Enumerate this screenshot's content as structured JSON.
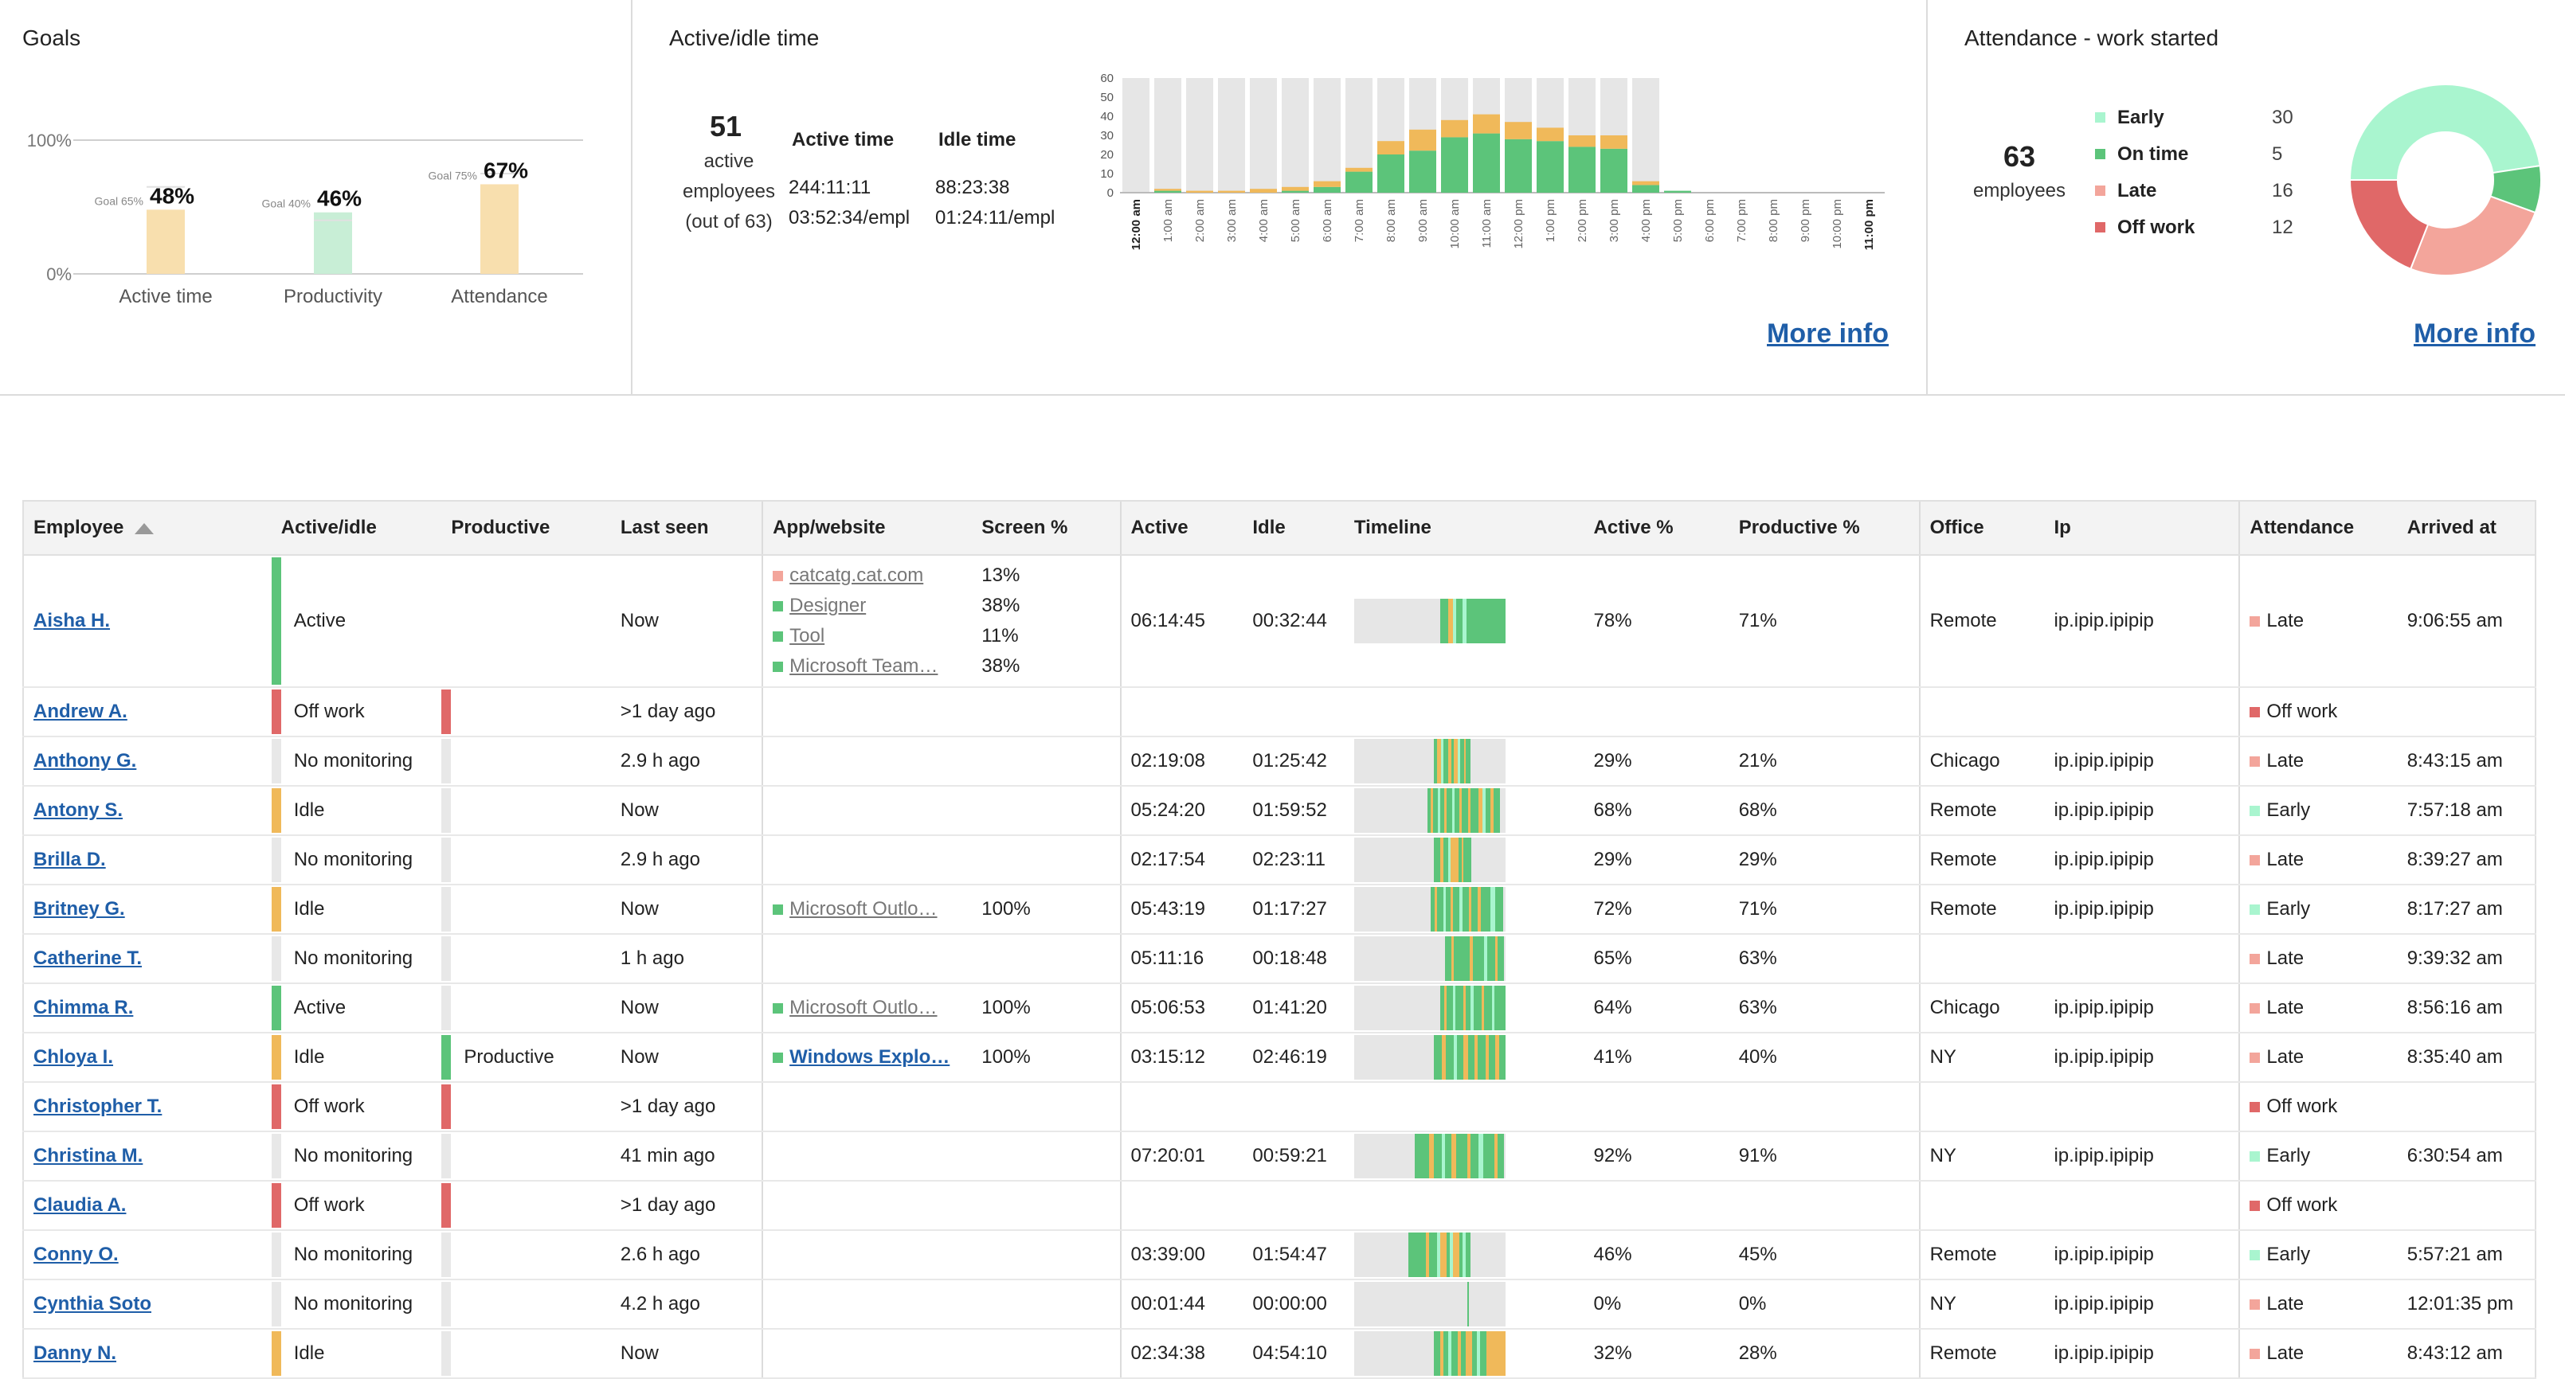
{
  "goals": {
    "title": "Goals",
    "axis": {
      "top": "100%",
      "bottom": "0%"
    },
    "bars": [
      {
        "label": "Active time",
        "value_label": "48%",
        "value": 48,
        "goal_label": "Goal 65%",
        "goal": 65,
        "color": "#f8dfae"
      },
      {
        "label": "Productivity",
        "value_label": "46%",
        "value": 46,
        "goal_label": "Goal 40%",
        "goal": 40,
        "color": "#c8eed6"
      },
      {
        "label": "Attendance",
        "value_label": "67%",
        "value": 67,
        "goal_label": "Goal 75%",
        "goal": 75,
        "color": "#f8dfae"
      }
    ]
  },
  "active_idle": {
    "title": "Active/idle time",
    "count": "51",
    "count_label_lines": [
      "active",
      "employees",
      "(out of 63)"
    ],
    "active_header": "Active time",
    "idle_header": "Idle time",
    "active_total": "244:11:11",
    "active_per": "03:52:34/empl",
    "idle_total": "88:23:38",
    "idle_per": "01:24:11/empl",
    "more_info": "More info"
  },
  "attendance": {
    "title": "Attendance - work started",
    "count": "63",
    "count_label": "employees",
    "legend": [
      {
        "label": "Early",
        "value": "30",
        "color": "#a9f5cf"
      },
      {
        "label": "On time",
        "value": "5",
        "color": "#5cc47a"
      },
      {
        "label": "Late",
        "value": "16",
        "color": "#f3a59b"
      },
      {
        "label": "Off work",
        "value": "12",
        "color": "#e06868"
      }
    ],
    "more_info": "More info"
  },
  "chart_data": {
    "type": "bar",
    "title": "",
    "ylim": [
      0,
      60
    ],
    "yticks": [
      "60",
      "50",
      "40",
      "30",
      "20",
      "10",
      "0"
    ],
    "categories": [
      "12:00 am",
      "1:00 am",
      "2:00 am",
      "3:00 am",
      "4:00 am",
      "5:00 am",
      "6:00 am",
      "7:00 am",
      "8:00 am",
      "9:00 am",
      "10:00 am",
      "11:00 am",
      "12:00 pm",
      "1:00 pm",
      "2:00 pm",
      "3:00 pm",
      "4:00 pm",
      "5:00 pm",
      "6:00 pm",
      "7:00 pm",
      "8:00 pm",
      "9:00 pm",
      "10:00 pm",
      "11:00 pm"
    ],
    "series": [
      {
        "name": "Active",
        "color": "#5cc47a",
        "values": [
          0,
          1,
          0,
          0,
          0,
          1,
          3,
          11,
          20,
          22,
          29,
          31,
          28,
          27,
          24,
          23,
          4,
          1,
          0,
          0,
          0,
          0,
          0,
          0
        ]
      },
      {
        "name": "Idle",
        "color": "#f0b95a",
        "values": [
          0,
          1,
          1,
          1,
          2,
          2,
          3,
          2,
          7,
          11,
          9,
          10,
          9,
          7,
          6,
          7,
          2,
          0,
          0,
          0,
          0,
          0,
          0,
          0
        ]
      }
    ],
    "background_range_end": 17,
    "bold_ticks": [
      "12:00 am",
      "11:00 pm"
    ]
  },
  "table": {
    "headers": {
      "employee": "Employee",
      "active_idle": "Active/idle",
      "productive": "Productive",
      "last_seen": "Last seen",
      "app": "App/website",
      "screen": "Screen %",
      "active": "Active",
      "idle": "Idle",
      "timeline": "Timeline",
      "active_pct": "Active %",
      "productive_pct": "Productive %",
      "office": "Office",
      "ip": "Ip",
      "attendance": "Attendance",
      "arrived": "Arrived at"
    },
    "status_colors": {
      "Active": "#5cc47a",
      "Off work": "#e06868",
      "No monitoring": "#e8e8e8",
      "Idle": "#f0b95a",
      "Productive": "#5cc47a"
    },
    "attendance_colors": {
      "Late": "#f3a59b",
      "Off work": "#e06868",
      "Early": "#a9f5cf"
    },
    "rows": [
      {
        "name": "Aisha H.",
        "status": "Active",
        "productive": "",
        "prod_color": "",
        "last_seen": "Now",
        "apps": [
          {
            "name": "catcatg.cat.com",
            "pct": "13%",
            "color": "#f3a59b"
          },
          {
            "name": "Designer",
            "pct": "38%",
            "color": "#5cc47a"
          },
          {
            "name": "Tool",
            "pct": "11%",
            "color": "#5cc47a"
          },
          {
            "name": "Microsoft Team…",
            "pct": "38%",
            "color": "#5cc47a"
          }
        ],
        "active": "06:14:45",
        "idle": "00:32:44",
        "timeline": "T0",
        "active_pct": "78%",
        "productive_pct": "71%",
        "office": "Remote",
        "ip": "ip.ipip.ipipip",
        "attendance": "Late",
        "arrived": "9:06:55 am"
      },
      {
        "name": "Andrew A.",
        "status": "Off work",
        "productive": "",
        "prod_color": "#e06868",
        "last_seen": ">1 day ago",
        "apps": [],
        "active": "",
        "idle": "",
        "timeline": "",
        "active_pct": "",
        "productive_pct": "",
        "office": "",
        "ip": "",
        "attendance": "Off work",
        "arrived": ""
      },
      {
        "name": "Anthony G.",
        "status": "No monitoring",
        "productive": "",
        "prod_color": "#e8e8e8",
        "last_seen": "2.9 h ago",
        "apps": [],
        "active": "02:19:08",
        "idle": "01:25:42",
        "timeline": "T1",
        "active_pct": "29%",
        "productive_pct": "21%",
        "office": "Chicago",
        "ip": "ip.ipip.ipipip",
        "attendance": "Late",
        "arrived": "8:43:15 am"
      },
      {
        "name": "Antony S.",
        "status": "Idle",
        "productive": "",
        "prod_color": "#e8e8e8",
        "last_seen": "Now",
        "apps": [],
        "active": "05:24:20",
        "idle": "01:59:52",
        "timeline": "T2",
        "active_pct": "68%",
        "productive_pct": "68%",
        "office": "Remote",
        "ip": "ip.ipip.ipipip",
        "attendance": "Early",
        "arrived": "7:57:18 am"
      },
      {
        "name": "Brilla D.",
        "status": "No monitoring",
        "productive": "",
        "prod_color": "#e8e8e8",
        "last_seen": "2.9 h ago",
        "apps": [],
        "active": "02:17:54",
        "idle": "02:23:11",
        "timeline": "T3",
        "active_pct": "29%",
        "productive_pct": "29%",
        "office": "Remote",
        "ip": "ip.ipip.ipipip",
        "attendance": "Late",
        "arrived": "8:39:27 am"
      },
      {
        "name": "Britney G.",
        "status": "Idle",
        "productive": "",
        "prod_color": "#e8e8e8",
        "last_seen": "Now",
        "apps": [
          {
            "name": "Microsoft Outlo…",
            "pct": "100%",
            "color": "#5cc47a"
          }
        ],
        "active": "05:43:19",
        "idle": "01:17:27",
        "timeline": "T4",
        "active_pct": "72%",
        "productive_pct": "71%",
        "office": "Remote",
        "ip": "ip.ipip.ipipip",
        "attendance": "Early",
        "arrived": "8:17:27 am"
      },
      {
        "name": "Catherine T.",
        "status": "No monitoring",
        "productive": "",
        "prod_color": "#e8e8e8",
        "last_seen": "1 h ago",
        "apps": [],
        "active": "05:11:16",
        "idle": "00:18:48",
        "timeline": "T5",
        "active_pct": "65%",
        "productive_pct": "63%",
        "office": "",
        "ip": "",
        "attendance": "Late",
        "arrived": "9:39:32 am"
      },
      {
        "name": "Chimma R.",
        "status": "Active",
        "productive": "",
        "prod_color": "#e8e8e8",
        "last_seen": "Now",
        "apps": [
          {
            "name": "Microsoft Outlo…",
            "pct": "100%",
            "color": "#5cc47a"
          }
        ],
        "active": "05:06:53",
        "idle": "01:41:20",
        "timeline": "T6",
        "active_pct": "64%",
        "productive_pct": "63%",
        "office": "Chicago",
        "ip": "ip.ipip.ipipip",
        "attendance": "Late",
        "arrived": "8:56:16 am"
      },
      {
        "name": "Chloya I.",
        "status": "Idle",
        "productive": "Productive",
        "prod_color": "#5cc47a",
        "last_seen": "Now",
        "apps": [
          {
            "name": "Windows Explo…",
            "pct": "100%",
            "color": "#5cc47a",
            "bold": true
          }
        ],
        "active": "03:15:12",
        "idle": "02:46:19",
        "timeline": "T7",
        "active_pct": "41%",
        "productive_pct": "40%",
        "office": "NY",
        "ip": "ip.ipip.ipipip",
        "attendance": "Late",
        "arrived": "8:35:40 am"
      },
      {
        "name": "Christopher T.",
        "status": "Off work",
        "productive": "",
        "prod_color": "#e06868",
        "last_seen": ">1 day ago",
        "apps": [],
        "active": "",
        "idle": "",
        "timeline": "",
        "active_pct": "",
        "productive_pct": "",
        "office": "",
        "ip": "",
        "attendance": "Off work",
        "arrived": ""
      },
      {
        "name": "Christina M.",
        "status": "No monitoring",
        "productive": "",
        "prod_color": "#e8e8e8",
        "last_seen": "41 min ago",
        "apps": [],
        "active": "07:20:01",
        "idle": "00:59:21",
        "timeline": "T8",
        "active_pct": "92%",
        "productive_pct": "91%",
        "office": "NY",
        "ip": "ip.ipip.ipipip",
        "attendance": "Early",
        "arrived": "6:30:54 am"
      },
      {
        "name": "Claudia A.",
        "status": "Off work",
        "productive": "",
        "prod_color": "#e06868",
        "last_seen": ">1 day ago",
        "apps": [],
        "active": "",
        "idle": "",
        "timeline": "",
        "active_pct": "",
        "productive_pct": "",
        "office": "",
        "ip": "",
        "attendance": "Off work",
        "arrived": ""
      },
      {
        "name": "Conny O.",
        "status": "No monitoring",
        "productive": "",
        "prod_color": "#e8e8e8",
        "last_seen": "2.6 h ago",
        "apps": [],
        "active": "03:39:00",
        "idle": "01:54:47",
        "timeline": "T9",
        "active_pct": "46%",
        "productive_pct": "45%",
        "office": "Remote",
        "ip": "ip.ipip.ipipip",
        "attendance": "Early",
        "arrived": "5:57:21 am"
      },
      {
        "name": "Cynthia Soto",
        "status": "No monitoring",
        "productive": "",
        "prod_color": "#e8e8e8",
        "last_seen": "4.2 h ago",
        "apps": [],
        "active": "00:01:44",
        "idle": "00:00:00",
        "timeline": "T10",
        "active_pct": "0%",
        "productive_pct": "0%",
        "office": "NY",
        "ip": "ip.ipip.ipipip",
        "attendance": "Late",
        "arrived": "12:01:35 pm"
      },
      {
        "name": "Danny N.",
        "status": "Idle",
        "productive": "",
        "prod_color": "#e8e8e8",
        "last_seen": "Now",
        "apps": [],
        "active": "02:34:38",
        "idle": "04:54:10",
        "timeline": "T11",
        "active_pct": "32%",
        "productive_pct": "28%",
        "office": "Remote",
        "ip": "ip.ipip.ipipip",
        "attendance": "Late",
        "arrived": "8:43:12 am"
      }
    ]
  }
}
